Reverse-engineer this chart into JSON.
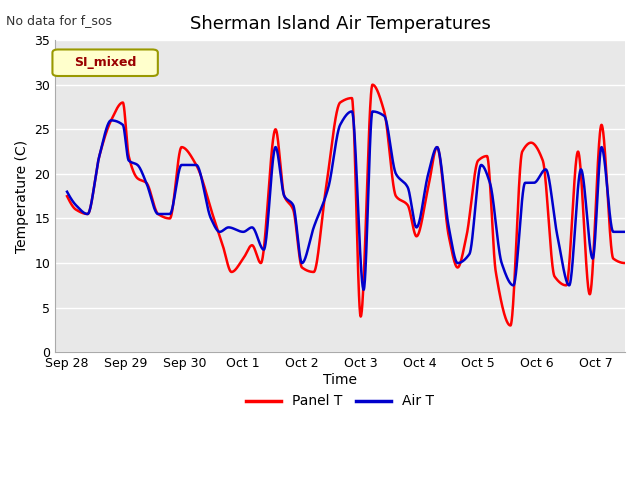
{
  "title": "Sherman Island Air Temperatures",
  "subtitle": "No data for f_sos",
  "xlabel": "Time",
  "ylabel": "Temperature (C)",
  "legend_label": "SI_mixed",
  "series_labels": [
    "Panel T",
    "Air T"
  ],
  "series_colors": [
    "#ff0000",
    "#0000cc"
  ],
  "ylim": [
    0,
    35
  ],
  "yticks": [
    0,
    5,
    10,
    15,
    20,
    25,
    30,
    35
  ],
  "xtick_positions": [
    0,
    1,
    2,
    3,
    4,
    5,
    6,
    7,
    8,
    9
  ],
  "xtick_labels": [
    "Sep 28",
    "Sep 29",
    "Sep 30",
    "Oct 1",
    "Oct 2",
    "Oct 3",
    "Oct 4",
    "Oct 5",
    "Oct 6",
    "Oct 7"
  ],
  "fig_bg_color": "#ffffff",
  "plot_bg_color": "#e8e8e8",
  "grid_color": "#ffffff",
  "legend_box_facecolor": "#ffffcc",
  "legend_box_edgecolor": "#999900",
  "legend_text_color": "#990000",
  "title_fontsize": 13,
  "axis_label_fontsize": 10,
  "tick_fontsize": 9,
  "linewidth": 1.8,
  "red_keypoints_x": [
    0.0,
    0.15,
    0.35,
    0.55,
    0.75,
    0.95,
    1.05,
    1.2,
    1.35,
    1.55,
    1.75,
    1.95,
    2.2,
    2.5,
    2.65,
    2.8,
    3.0,
    3.15,
    3.3,
    3.55,
    3.7,
    3.85,
    4.0,
    4.2,
    4.4,
    4.65,
    4.85,
    5.0,
    5.2,
    5.4,
    5.6,
    5.8,
    5.95,
    6.15,
    6.3,
    6.5,
    6.65,
    6.8,
    7.0,
    7.15,
    7.3,
    7.55,
    7.75,
    7.9,
    8.1,
    8.3,
    8.5,
    8.7,
    8.9,
    9.1,
    9.3,
    9.5
  ],
  "red_keypoints_y": [
    17.5,
    16.0,
    15.5,
    22.0,
    26.0,
    28.0,
    22.0,
    19.5,
    19.0,
    15.5,
    15.0,
    23.0,
    21.0,
    15.0,
    12.0,
    9.0,
    10.5,
    12.0,
    10.0,
    25.0,
    17.5,
    16.0,
    9.5,
    9.0,
    18.0,
    28.0,
    28.5,
    4.0,
    30.0,
    27.0,
    17.5,
    16.5,
    13.0,
    18.5,
    23.0,
    13.0,
    9.5,
    13.0,
    21.5,
    22.0,
    9.0,
    3.0,
    22.5,
    23.5,
    21.5,
    8.5,
    7.5,
    22.5,
    6.5,
    25.5,
    10.5,
    10.0
  ],
  "blue_keypoints_x": [
    0.0,
    0.15,
    0.35,
    0.55,
    0.75,
    0.95,
    1.05,
    1.2,
    1.35,
    1.55,
    1.75,
    1.95,
    2.2,
    2.45,
    2.6,
    2.75,
    3.0,
    3.15,
    3.35,
    3.55,
    3.7,
    3.85,
    4.0,
    4.2,
    4.45,
    4.65,
    4.85,
    5.05,
    5.2,
    5.4,
    5.6,
    5.8,
    5.95,
    6.15,
    6.3,
    6.5,
    6.65,
    6.85,
    7.05,
    7.2,
    7.4,
    7.6,
    7.8,
    7.95,
    8.15,
    8.35,
    8.55,
    8.75,
    8.95,
    9.1,
    9.3,
    9.5
  ],
  "blue_keypoints_y": [
    18.0,
    16.5,
    15.5,
    22.0,
    26.0,
    25.5,
    21.5,
    21.0,
    19.0,
    15.5,
    15.5,
    21.0,
    21.0,
    15.0,
    13.5,
    14.0,
    13.5,
    14.0,
    11.5,
    23.0,
    17.5,
    16.5,
    10.0,
    14.0,
    18.5,
    25.5,
    27.0,
    7.0,
    27.0,
    26.5,
    20.0,
    18.5,
    14.0,
    20.0,
    23.0,
    14.0,
    10.0,
    11.0,
    21.0,
    19.0,
    10.0,
    7.5,
    19.0,
    19.0,
    20.5,
    13.0,
    7.5,
    20.5,
    10.5,
    23.0,
    13.5,
    13.5
  ]
}
